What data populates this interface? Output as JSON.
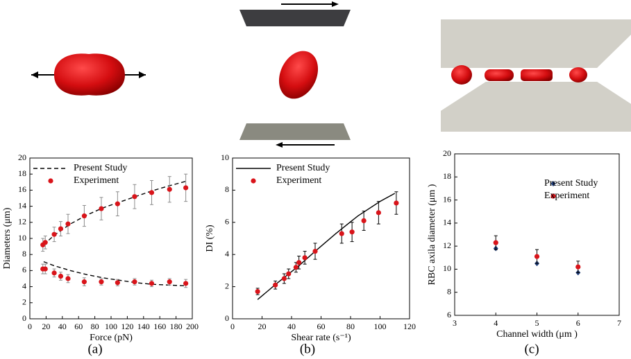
{
  "chart_data": [
    {
      "type": "scatter",
      "caption": "(a)",
      "xlabel": "Force (pN)",
      "ylabel": "Diameters (μm)",
      "xlim": [
        0,
        200
      ],
      "xticks": [
        0,
        20,
        40,
        60,
        80,
        100,
        120,
        140,
        160,
        180,
        200
      ],
      "ylim": [
        0,
        20
      ],
      "yticks": [
        0,
        2,
        4,
        6,
        8,
        10,
        12,
        14,
        16,
        18,
        20
      ],
      "legend": "upper left",
      "series": [
        {
          "name": "Present Study",
          "style": "dashed",
          "color": "#000000",
          "x": [
            17,
            30,
            50,
            70,
            90,
            110,
            130,
            150,
            170,
            192,
            null,
            17,
            30,
            50,
            70,
            90,
            110,
            130,
            150,
            170,
            192
          ],
          "values": [
            9.2,
            10.4,
            11.8,
            12.9,
            13.8,
            14.5,
            15.2,
            15.9,
            16.5,
            17.1,
            null,
            7.1,
            6.6,
            6.0,
            5.5,
            5.1,
            4.8,
            4.5,
            4.3,
            4.2,
            4.1
          ]
        },
        {
          "name": "Experiment",
          "style": "markers",
          "marker": "circle",
          "color": "#d9141a",
          "error_color": "#8c8c8c",
          "x": [
            16,
            19,
            30,
            38,
            47,
            67,
            88,
            108,
            129,
            150,
            172,
            192,
            16,
            19,
            30,
            38,
            47,
            67,
            88,
            108,
            129,
            150,
            172,
            192
          ],
          "values": [
            9.2,
            9.5,
            10.5,
            11.2,
            11.8,
            12.8,
            13.7,
            14.3,
            15.2,
            15.7,
            16.1,
            16.3,
            6.2,
            6.2,
            5.7,
            5.3,
            5.0,
            4.6,
            4.6,
            4.5,
            4.6,
            4.4,
            4.6,
            4.4
          ],
          "errors": [
            0.8,
            0.8,
            0.9,
            0.9,
            1.2,
            1.3,
            1.4,
            1.5,
            1.5,
            1.5,
            1.6,
            1.7,
            0.6,
            0.6,
            0.5,
            0.5,
            0.5,
            0.5,
            0.4,
            0.4,
            0.4,
            0.4,
            0.4,
            0.5
          ]
        }
      ]
    },
    {
      "type": "scatter",
      "caption": "(b)",
      "xlabel": "Shear rate (s⁻¹)",
      "ylabel": "DI (%)",
      "xlim": [
        0,
        120
      ],
      "xticks": [
        0,
        20,
        40,
        60,
        80,
        100,
        120
      ],
      "ylim": [
        0,
        10
      ],
      "yticks": [
        0,
        2,
        4,
        6,
        8,
        10
      ],
      "legend": "upper left",
      "series": [
        {
          "name": "Present Study",
          "style": "solid",
          "color": "#000000",
          "x": [
            17,
            30,
            45,
            56,
            70,
            85,
            100,
            110
          ],
          "values": [
            1.2,
            2.2,
            3.3,
            4.2,
            5.3,
            6.4,
            7.3,
            7.8
          ]
        },
        {
          "name": "Experiment",
          "style": "markers",
          "marker": "circle",
          "color": "#d9141a",
          "error_color": "#000000",
          "x": [
            17,
            29,
            35,
            38,
            43,
            45,
            49,
            56,
            74,
            81,
            89,
            99,
            111
          ],
          "values": [
            1.7,
            2.1,
            2.5,
            2.8,
            3.2,
            3.5,
            3.8,
            4.2,
            5.3,
            5.4,
            6.1,
            6.6,
            7.2
          ],
          "errors": [
            0.2,
            0.25,
            0.3,
            0.3,
            0.3,
            0.4,
            0.4,
            0.5,
            0.6,
            0.6,
            0.6,
            0.7,
            0.7
          ]
        }
      ]
    },
    {
      "type": "scatter",
      "caption": "(c)",
      "xlabel": "Channel width (μm )",
      "ylabel": "RBC axila diameter (μm )",
      "xlim": [
        3,
        7
      ],
      "xticks": [
        3,
        4,
        5,
        6,
        7
      ],
      "ylim": [
        6,
        20
      ],
      "yticks": [
        6,
        8,
        10,
        12,
        14,
        16,
        18,
        20
      ],
      "legend": "center right",
      "series": [
        {
          "name": "Present Study",
          "style": "markers",
          "marker": "diamond",
          "color": "#1f3d7a",
          "x": [
            4,
            5,
            6
          ],
          "values": [
            11.8,
            10.5,
            9.7
          ]
        },
        {
          "name": "Experiment",
          "style": "markers",
          "marker": "circle",
          "color": "#d9141a",
          "error_color": "#000000",
          "x": [
            4,
            5,
            6
          ],
          "values": [
            12.3,
            11.1,
            10.2
          ],
          "errors": [
            0.6,
            0.6,
            0.5
          ]
        }
      ]
    }
  ]
}
